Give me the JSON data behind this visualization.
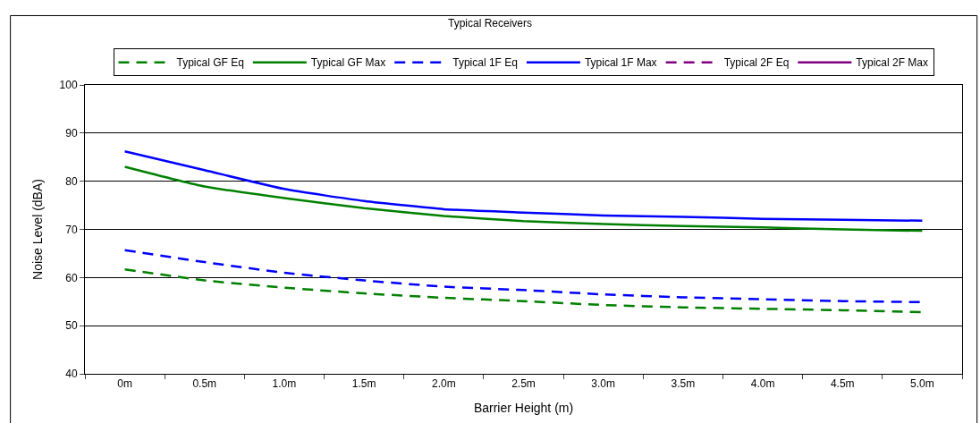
{
  "chart_data": {
    "type": "line",
    "title": "Typical Receivers",
    "xlabel": "Barrier Height (m)",
    "ylabel": "Noise Level (dBA)",
    "categories": [
      "0m",
      "0.5m",
      "1.0m",
      "1.5m",
      "2.0m",
      "2.5m",
      "3.0m",
      "3.5m",
      "4.0m",
      "4.5m",
      "5.0m"
    ],
    "series": [
      {
        "name": "Typical GF Eq",
        "color": "#008000",
        "line_style": "dashed",
        "values": [
          61.7,
          59.4,
          57.9,
          56.7,
          55.8,
          55.1,
          54.3,
          53.8,
          53.5,
          53.2,
          52.8
        ]
      },
      {
        "name": "Typical GF Max",
        "color": "#008000",
        "line_style": "solid",
        "values": [
          83,
          78.9,
          76.5,
          74.4,
          72.8,
          71.7,
          71.1,
          70.7,
          70.4,
          70.0,
          69.7
        ]
      },
      {
        "name": "Typical 1F Eq",
        "color": "#0000ff",
        "line_style": "dashed",
        "values": [
          65.7,
          63.2,
          61.0,
          59.4,
          58.1,
          57.4,
          56.5,
          55.9,
          55.5,
          55.1,
          54.9
        ]
      },
      {
        "name": "Typical 1F Max",
        "color": "#0000ff",
        "line_style": "solid",
        "values": [
          86.2,
          82.3,
          78.4,
          75.9,
          74.2,
          73.5,
          72.9,
          72.6,
          72.2,
          72.0,
          71.8
        ]
      },
      {
        "name": "Typical 2F Eq",
        "color": "#800080",
        "line_style": "dashed",
        "values": [
          null,
          null,
          null,
          null,
          null,
          null,
          null,
          null,
          null,
          null,
          null
        ]
      },
      {
        "name": "Typical 2F Max",
        "color": "#800080",
        "line_style": "solid",
        "values": [
          null,
          null,
          null,
          null,
          null,
          null,
          null,
          null,
          null,
          null,
          null
        ]
      }
    ],
    "ylim": [
      40,
      100
    ],
    "yticks": [
      40,
      50,
      60,
      70,
      80,
      90,
      100
    ],
    "grid": "y",
    "legend": "top",
    "marker": "none"
  }
}
